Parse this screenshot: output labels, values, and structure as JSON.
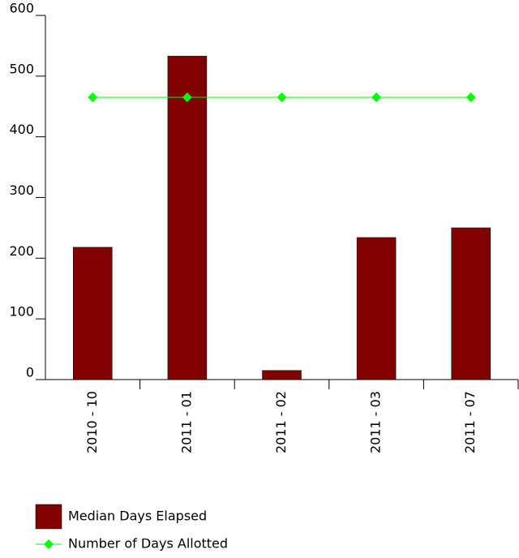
{
  "chart_data": {
    "type": "bar",
    "categories": [
      "2010 - 10",
      "2011 - 01",
      "2011 - 02",
      "2011 - 03",
      "2011 - 07"
    ],
    "series": [
      {
        "name": "Median Days Elapsed",
        "type": "bar",
        "color": "#800000",
        "values": [
          218,
          533,
          15,
          234,
          250
        ]
      },
      {
        "name": "Number of Days Allotted",
        "type": "line",
        "color": "#00ff00",
        "values": [
          465,
          465,
          465,
          465,
          465
        ]
      }
    ],
    "ylim": [
      0,
      600
    ],
    "yticks": [
      0,
      100,
      200,
      300,
      400,
      500,
      600
    ],
    "grid": false
  }
}
